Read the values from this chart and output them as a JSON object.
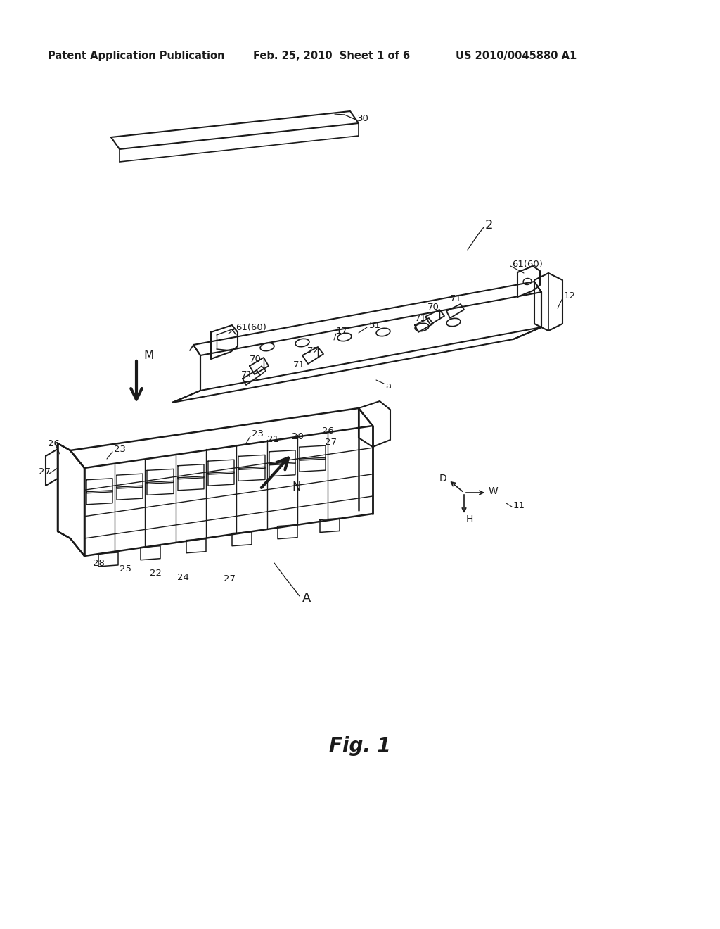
{
  "bg_color": "#ffffff",
  "line_color": "#1a1a1a",
  "header_left": "Patent Application Publication",
  "header_mid": "Feb. 25, 2010  Sheet 1 of 6",
  "header_right": "US 2010/0045880 A1",
  "figure_label": "Fig. 1",
  "header_fontsize": 10.5,
  "fig_label_fontsize": 18,
  "label_fontsize": 9.5
}
